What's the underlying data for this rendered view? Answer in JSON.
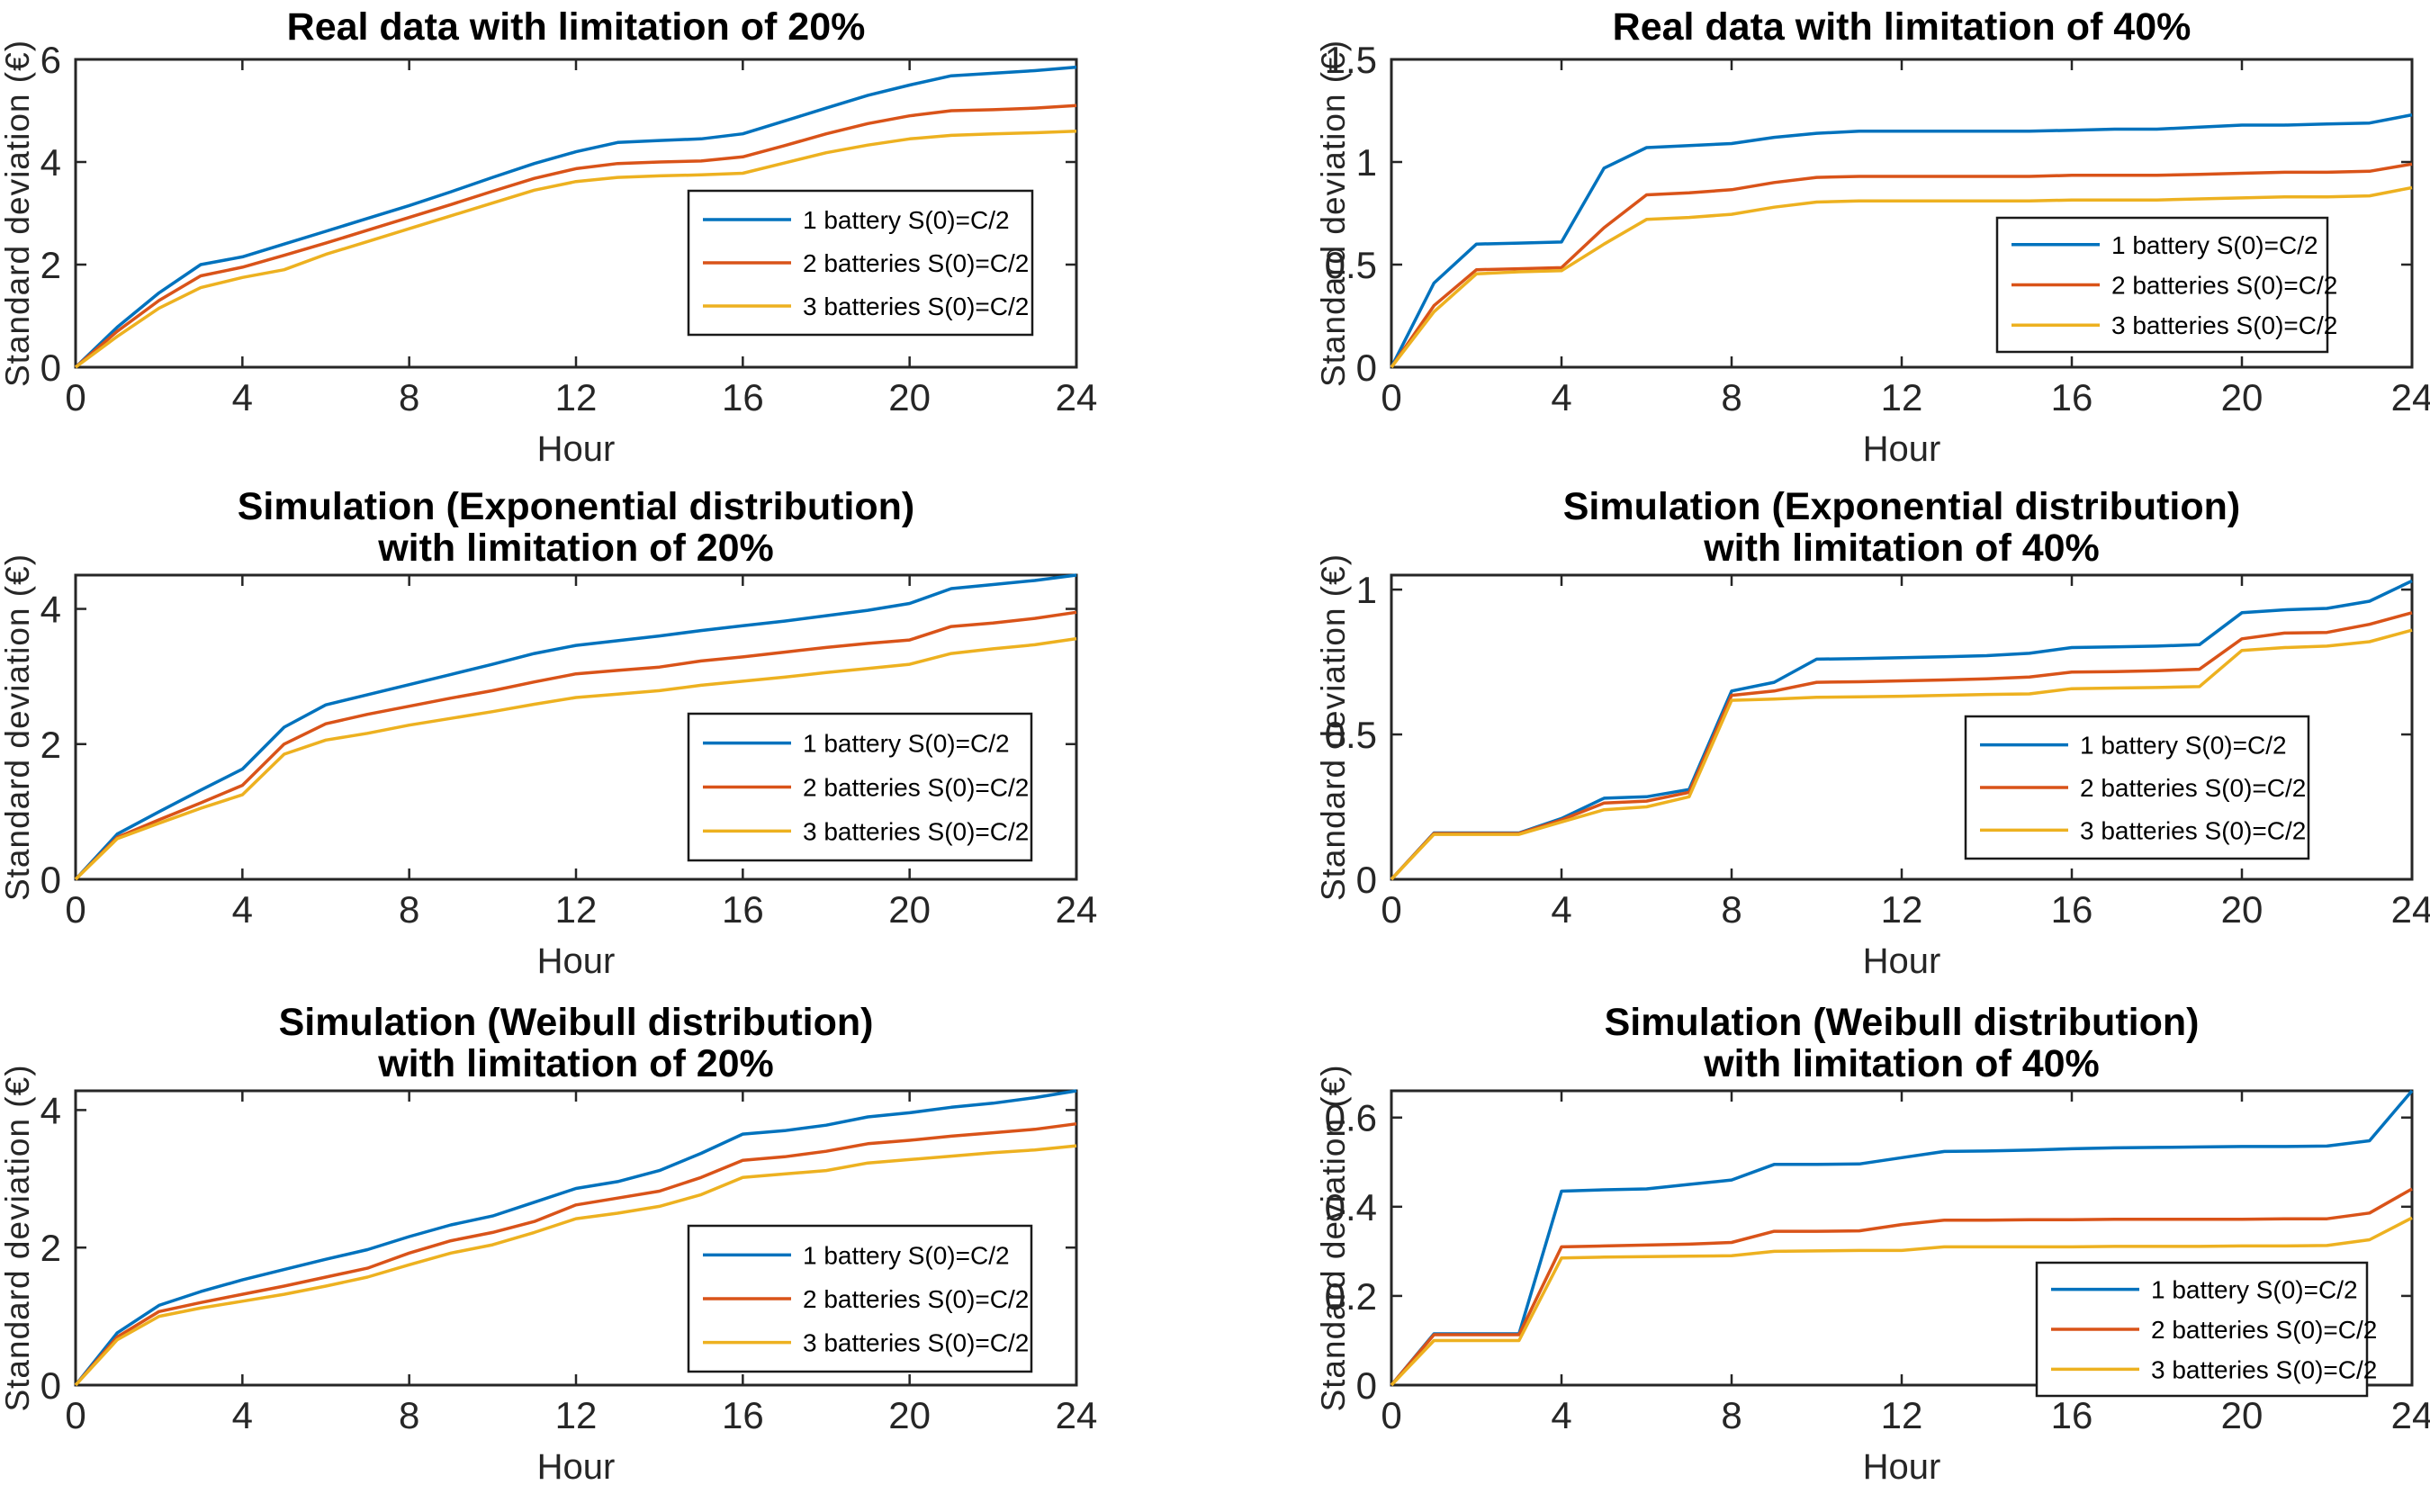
{
  "figure": {
    "background": "#ffffff",
    "axis_color": "#262626",
    "series_colors": [
      "#0072BD",
      "#D95319",
      "#EDB120"
    ],
    "legend_labels": [
      "1 battery S(0)=C/2",
      "2 batteries S(0)=C/2",
      "3 batteries S(0)=C/2"
    ]
  },
  "chart_data": [
    {
      "id": "real-20",
      "type": "line",
      "title": "Real data with limitation of 20%",
      "title_lines": [
        "Real data with limitation of 20%"
      ],
      "xlabel": "Hour",
      "ylabel": "Standard deviation (€)",
      "xlim": [
        0,
        24
      ],
      "xticks": [
        0,
        4,
        8,
        12,
        16,
        20,
        24
      ],
      "ylim": [
        0,
        6
      ],
      "yticks": [
        0,
        2,
        4,
        6
      ],
      "grid": false,
      "legend_position": "right-middle",
      "x": [
        0,
        1,
        2,
        3,
        4,
        5,
        6,
        7,
        8,
        9,
        10,
        11,
        12,
        13,
        14,
        15,
        16,
        17,
        18,
        19,
        20,
        21,
        22,
        23,
        24
      ],
      "series": [
        {
          "name": "1 battery S(0)=C/2",
          "color": "#0072BD",
          "values": [
            0,
            0.78,
            1.45,
            2.0,
            2.15,
            2.4,
            2.65,
            2.9,
            3.15,
            3.42,
            3.7,
            3.97,
            4.2,
            4.38,
            4.42,
            4.45,
            4.55,
            4.8,
            5.05,
            5.3,
            5.5,
            5.68,
            5.73,
            5.78,
            5.85
          ]
        },
        {
          "name": "2 batteries S(0)=C/2",
          "color": "#D95319",
          "values": [
            0,
            0.7,
            1.3,
            1.78,
            1.95,
            2.18,
            2.42,
            2.67,
            2.92,
            3.17,
            3.43,
            3.68,
            3.87,
            3.97,
            4.0,
            4.02,
            4.1,
            4.32,
            4.55,
            4.75,
            4.9,
            5.0,
            5.02,
            5.05,
            5.1
          ]
        },
        {
          "name": "3 batteries S(0)=C/2",
          "color": "#EDB120",
          "values": [
            0,
            0.6,
            1.15,
            1.55,
            1.75,
            1.9,
            2.2,
            2.45,
            2.7,
            2.95,
            3.2,
            3.45,
            3.62,
            3.7,
            3.73,
            3.75,
            3.78,
            3.98,
            4.18,
            4.33,
            4.45,
            4.52,
            4.55,
            4.57,
            4.6
          ]
        }
      ],
      "layout": {
        "axes": [
          84,
          66,
          1196,
          408
        ],
        "legend": [
          765,
          212,
          382,
          160
        ]
      }
    },
    {
      "id": "real-40",
      "type": "line",
      "title": "Real data with limitation of 40%",
      "title_lines": [
        "Real data with limitation of 40%"
      ],
      "xlabel": "Hour",
      "ylabel": "Standard deviation (€)",
      "xlim": [
        0,
        24
      ],
      "xticks": [
        0,
        4,
        8,
        12,
        16,
        20,
        24
      ],
      "ylim": [
        0,
        1.5
      ],
      "yticks": [
        0,
        0.5,
        1,
        1.5
      ],
      "grid": false,
      "legend_position": "right-lower",
      "x": [
        0,
        1,
        2,
        3,
        4,
        5,
        6,
        7,
        8,
        9,
        10,
        11,
        12,
        13,
        14,
        15,
        16,
        17,
        18,
        19,
        20,
        21,
        22,
        23,
        24
      ],
      "series": [
        {
          "name": "1 battery S(0)=C/2",
          "color": "#0072BD",
          "values": [
            0,
            0.41,
            0.6,
            0.605,
            0.61,
            0.97,
            1.07,
            1.08,
            1.09,
            1.12,
            1.14,
            1.15,
            1.15,
            1.15,
            1.15,
            1.15,
            1.155,
            1.16,
            1.16,
            1.17,
            1.18,
            1.18,
            1.185,
            1.19,
            1.23
          ]
        },
        {
          "name": "2 batteries S(0)=C/2",
          "color": "#D95319",
          "values": [
            0,
            0.3,
            0.475,
            0.48,
            0.485,
            0.68,
            0.84,
            0.85,
            0.865,
            0.9,
            0.925,
            0.93,
            0.93,
            0.93,
            0.93,
            0.93,
            0.935,
            0.935,
            0.935,
            0.94,
            0.945,
            0.95,
            0.95,
            0.955,
            0.99
          ]
        },
        {
          "name": "3 batteries S(0)=C/2",
          "color": "#EDB120",
          "values": [
            0,
            0.27,
            0.455,
            0.465,
            0.47,
            0.6,
            0.72,
            0.73,
            0.745,
            0.78,
            0.805,
            0.81,
            0.81,
            0.81,
            0.81,
            0.81,
            0.815,
            0.815,
            0.815,
            0.82,
            0.825,
            0.83,
            0.83,
            0.835,
            0.875
          ]
        }
      ],
      "layout": {
        "axes": [
          1546,
          66,
          2680,
          408
        ],
        "legend": [
          2219,
          242,
          367,
          149
        ]
      }
    },
    {
      "id": "sim-exp-20",
      "type": "line",
      "title": "Simulation (Exponential distribution) with limitation of 20%",
      "title_lines": [
        "Simulation (Exponential distribution)",
        "with limitation of 20%"
      ],
      "xlabel": "Hour",
      "ylabel": "Standard deviation (€)",
      "xlim": [
        0,
        24
      ],
      "xticks": [
        0,
        4,
        8,
        12,
        16,
        20,
        24
      ],
      "ylim": [
        0,
        4.5
      ],
      "yticks": [
        0,
        2,
        4
      ],
      "grid": false,
      "legend_position": "right-lower",
      "x": [
        0,
        1,
        2,
        3,
        4,
        5,
        6,
        7,
        8,
        9,
        10,
        11,
        12,
        13,
        14,
        15,
        16,
        17,
        18,
        19,
        20,
        21,
        22,
        23,
        24
      ],
      "series": [
        {
          "name": "1 battery S(0)=C/2",
          "color": "#0072BD",
          "values": [
            0,
            0.67,
            1.0,
            1.32,
            1.63,
            2.25,
            2.58,
            2.73,
            2.88,
            3.03,
            3.18,
            3.34,
            3.46,
            3.53,
            3.6,
            3.68,
            3.75,
            3.82,
            3.9,
            3.98,
            4.08,
            4.3,
            4.36,
            4.42,
            4.5
          ]
        },
        {
          "name": "2 batteries S(0)=C/2",
          "color": "#D95319",
          "values": [
            0,
            0.62,
            0.88,
            1.13,
            1.39,
            2.0,
            2.3,
            2.44,
            2.56,
            2.68,
            2.79,
            2.92,
            3.04,
            3.09,
            3.14,
            3.23,
            3.29,
            3.36,
            3.43,
            3.49,
            3.54,
            3.74,
            3.79,
            3.86,
            3.95
          ]
        },
        {
          "name": "3 batteries S(0)=C/2",
          "color": "#EDB120",
          "values": [
            0,
            0.6,
            0.83,
            1.05,
            1.25,
            1.85,
            2.06,
            2.16,
            2.28,
            2.38,
            2.48,
            2.59,
            2.69,
            2.74,
            2.79,
            2.87,
            2.93,
            2.99,
            3.06,
            3.12,
            3.18,
            3.34,
            3.41,
            3.47,
            3.56
          ]
        }
      ],
      "layout": {
        "axes": [
          84,
          639,
          1196,
          977
        ],
        "legend": [
          765,
          793,
          381,
          163
        ]
      }
    },
    {
      "id": "sim-exp-40",
      "type": "line",
      "title": "Simulation (Exponential distribution) with limitation of 40%",
      "title_lines": [
        "Simulation (Exponential distribution)",
        "with limitation of 40%"
      ],
      "xlabel": "Hour",
      "ylabel": "Standard deviation (€)",
      "xlim": [
        0,
        24
      ],
      "xticks": [
        0,
        4,
        8,
        12,
        16,
        20,
        24
      ],
      "ylim": [
        0,
        1.05
      ],
      "yticks": [
        0,
        0.5,
        1
      ],
      "grid": false,
      "legend_position": "right-lower",
      "x": [
        0,
        1,
        2,
        3,
        4,
        5,
        6,
        7,
        8,
        9,
        10,
        11,
        12,
        13,
        14,
        15,
        16,
        17,
        18,
        19,
        20,
        21,
        22,
        23,
        24
      ],
      "series": [
        {
          "name": "1 battery S(0)=C/2",
          "color": "#0072BD",
          "values": [
            0,
            0.16,
            0.16,
            0.16,
            0.21,
            0.28,
            0.285,
            0.31,
            0.65,
            0.68,
            0.76,
            0.762,
            0.765,
            0.768,
            0.772,
            0.78,
            0.8,
            0.802,
            0.805,
            0.81,
            0.92,
            0.93,
            0.935,
            0.96,
            1.03
          ]
        },
        {
          "name": "2 batteries S(0)=C/2",
          "color": "#D95319",
          "values": [
            0,
            0.158,
            0.158,
            0.158,
            0.205,
            0.263,
            0.27,
            0.3,
            0.635,
            0.65,
            0.68,
            0.682,
            0.685,
            0.688,
            0.692,
            0.698,
            0.715,
            0.717,
            0.72,
            0.725,
            0.83,
            0.85,
            0.852,
            0.88,
            0.92
          ]
        },
        {
          "name": "3 batteries S(0)=C/2",
          "color": "#EDB120",
          "values": [
            0,
            0.155,
            0.155,
            0.155,
            0.198,
            0.24,
            0.25,
            0.285,
            0.618,
            0.622,
            0.628,
            0.63,
            0.632,
            0.635,
            0.638,
            0.64,
            0.658,
            0.66,
            0.662,
            0.665,
            0.79,
            0.8,
            0.805,
            0.82,
            0.86
          ]
        }
      ],
      "layout": {
        "axes": [
          1546,
          639,
          2680,
          977
        ],
        "legend": [
          2184,
          796,
          381,
          158
        ]
      }
    },
    {
      "id": "sim-weibull-20",
      "type": "line",
      "title": "Simulation (Weibull distribution) with limitation of 20%",
      "title_lines": [
        "Simulation (Weibull distribution)",
        "with limitation of 20%"
      ],
      "xlabel": "Hour",
      "ylabel": "Standard deviation (€)",
      "xlim": [
        0,
        24
      ],
      "xticks": [
        0,
        4,
        8,
        12,
        16,
        20,
        24
      ],
      "ylim": [
        0,
        4.28
      ],
      "yticks": [
        0,
        2,
        4
      ],
      "grid": false,
      "legend_position": "right-lower",
      "x": [
        0,
        1,
        2,
        3,
        4,
        5,
        6,
        7,
        8,
        9,
        10,
        11,
        12,
        13,
        14,
        15,
        16,
        17,
        18,
        19,
        20,
        21,
        22,
        23,
        24
      ],
      "series": [
        {
          "name": "1 battery S(0)=C/2",
          "color": "#0072BD",
          "values": [
            0,
            0.76,
            1.16,
            1.36,
            1.53,
            1.68,
            1.83,
            1.97,
            2.16,
            2.33,
            2.46,
            2.66,
            2.86,
            2.96,
            3.12,
            3.37,
            3.65,
            3.7,
            3.78,
            3.9,
            3.96,
            4.04,
            4.1,
            4.18,
            4.28
          ]
        },
        {
          "name": "2 batteries S(0)=C/2",
          "color": "#D95319",
          "values": [
            0,
            0.7,
            1.07,
            1.2,
            1.32,
            1.44,
            1.57,
            1.7,
            1.92,
            2.1,
            2.22,
            2.38,
            2.62,
            2.72,
            2.82,
            3.02,
            3.27,
            3.32,
            3.4,
            3.51,
            3.56,
            3.62,
            3.67,
            3.72,
            3.8
          ]
        },
        {
          "name": "3 batteries S(0)=C/2",
          "color": "#EDB120",
          "values": [
            0,
            0.66,
            1.0,
            1.12,
            1.22,
            1.32,
            1.44,
            1.57,
            1.75,
            1.92,
            2.04,
            2.22,
            2.42,
            2.5,
            2.6,
            2.77,
            3.02,
            3.07,
            3.12,
            3.23,
            3.28,
            3.33,
            3.38,
            3.42,
            3.48
          ]
        }
      ],
      "layout": {
        "axes": [
          84,
          1212,
          1196,
          1539
        ],
        "legend": [
          765,
          1362,
          381,
          162
        ]
      }
    },
    {
      "id": "sim-weibull-40",
      "type": "line",
      "title": "Simulation (Weibull distribution) with limitation of 40%",
      "title_lines": [
        "Simulation (Weibull distribution)",
        "with limitation of 40%"
      ],
      "xlabel": "Hour",
      "ylabel": "Standard deviation (€)",
      "xlim": [
        0,
        24
      ],
      "xticks": [
        0,
        4,
        8,
        12,
        16,
        20,
        24
      ],
      "ylim": [
        0,
        0.66
      ],
      "yticks": [
        0,
        0.2,
        0.4,
        0.6
      ],
      "grid": false,
      "legend_position": "right-lower",
      "x": [
        0,
        1,
        2,
        3,
        4,
        5,
        6,
        7,
        8,
        9,
        10,
        11,
        12,
        13,
        14,
        15,
        16,
        17,
        18,
        19,
        20,
        21,
        22,
        23,
        24
      ],
      "series": [
        {
          "name": "1 battery S(0)=C/2",
          "color": "#0072BD",
          "values": [
            0,
            0.115,
            0.115,
            0.115,
            0.435,
            0.438,
            0.44,
            0.45,
            0.46,
            0.495,
            0.495,
            0.496,
            0.51,
            0.524,
            0.525,
            0.527,
            0.53,
            0.532,
            0.533,
            0.534,
            0.535,
            0.535,
            0.536,
            0.548,
            0.66
          ]
        },
        {
          "name": "2 batteries S(0)=C/2",
          "color": "#D95319",
          "values": [
            0,
            0.113,
            0.113,
            0.113,
            0.31,
            0.312,
            0.314,
            0.316,
            0.32,
            0.345,
            0.345,
            0.346,
            0.36,
            0.37,
            0.37,
            0.371,
            0.371,
            0.372,
            0.372,
            0.372,
            0.372,
            0.373,
            0.373,
            0.386,
            0.44
          ]
        },
        {
          "name": "3 batteries S(0)=C/2",
          "color": "#EDB120",
          "values": [
            0,
            0.1,
            0.1,
            0.1,
            0.285,
            0.287,
            0.288,
            0.289,
            0.29,
            0.3,
            0.301,
            0.302,
            0.302,
            0.31,
            0.31,
            0.31,
            0.31,
            0.311,
            0.311,
            0.311,
            0.312,
            0.312,
            0.313,
            0.326,
            0.375
          ]
        }
      ],
      "layout": {
        "axes": [
          1546,
          1212,
          2680,
          1539
        ],
        "legend": [
          2263,
          1403,
          367,
          148
        ]
      }
    }
  ]
}
